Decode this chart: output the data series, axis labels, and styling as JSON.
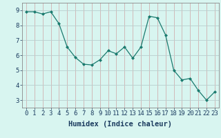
{
  "x": [
    0,
    1,
    2,
    3,
    4,
    5,
    6,
    7,
    8,
    9,
    10,
    11,
    12,
    13,
    14,
    15,
    16,
    17,
    18,
    19,
    20,
    21,
    22,
    23
  ],
  "y": [
    8.9,
    8.9,
    8.75,
    8.9,
    8.1,
    6.55,
    5.85,
    5.4,
    5.35,
    5.7,
    6.3,
    6.1,
    6.55,
    5.8,
    6.55,
    8.6,
    8.5,
    7.35,
    5.0,
    4.35,
    4.45,
    3.65,
    3.0,
    3.55
  ],
  "line_color": "#1a7a6e",
  "marker": "D",
  "marker_size": 2.0,
  "bg_color": "#d8f5f0",
  "grid_color": "#c0ddd8",
  "grid_color_major": "#b8cece",
  "xlabel": "Humidex (Indice chaleur)",
  "xlabel_fontsize": 7.5,
  "tick_fontsize": 6.5,
  "ylim": [
    2.5,
    9.5
  ],
  "xlim": [
    -0.5,
    23.5
  ],
  "yticks": [
    3,
    4,
    5,
    6,
    7,
    8,
    9
  ],
  "xticks": [
    0,
    1,
    2,
    3,
    4,
    5,
    6,
    7,
    8,
    9,
    10,
    11,
    12,
    13,
    14,
    15,
    16,
    17,
    18,
    19,
    20,
    21,
    22,
    23
  ],
  "figsize": [
    3.2,
    2.0
  ],
  "dpi": 100
}
